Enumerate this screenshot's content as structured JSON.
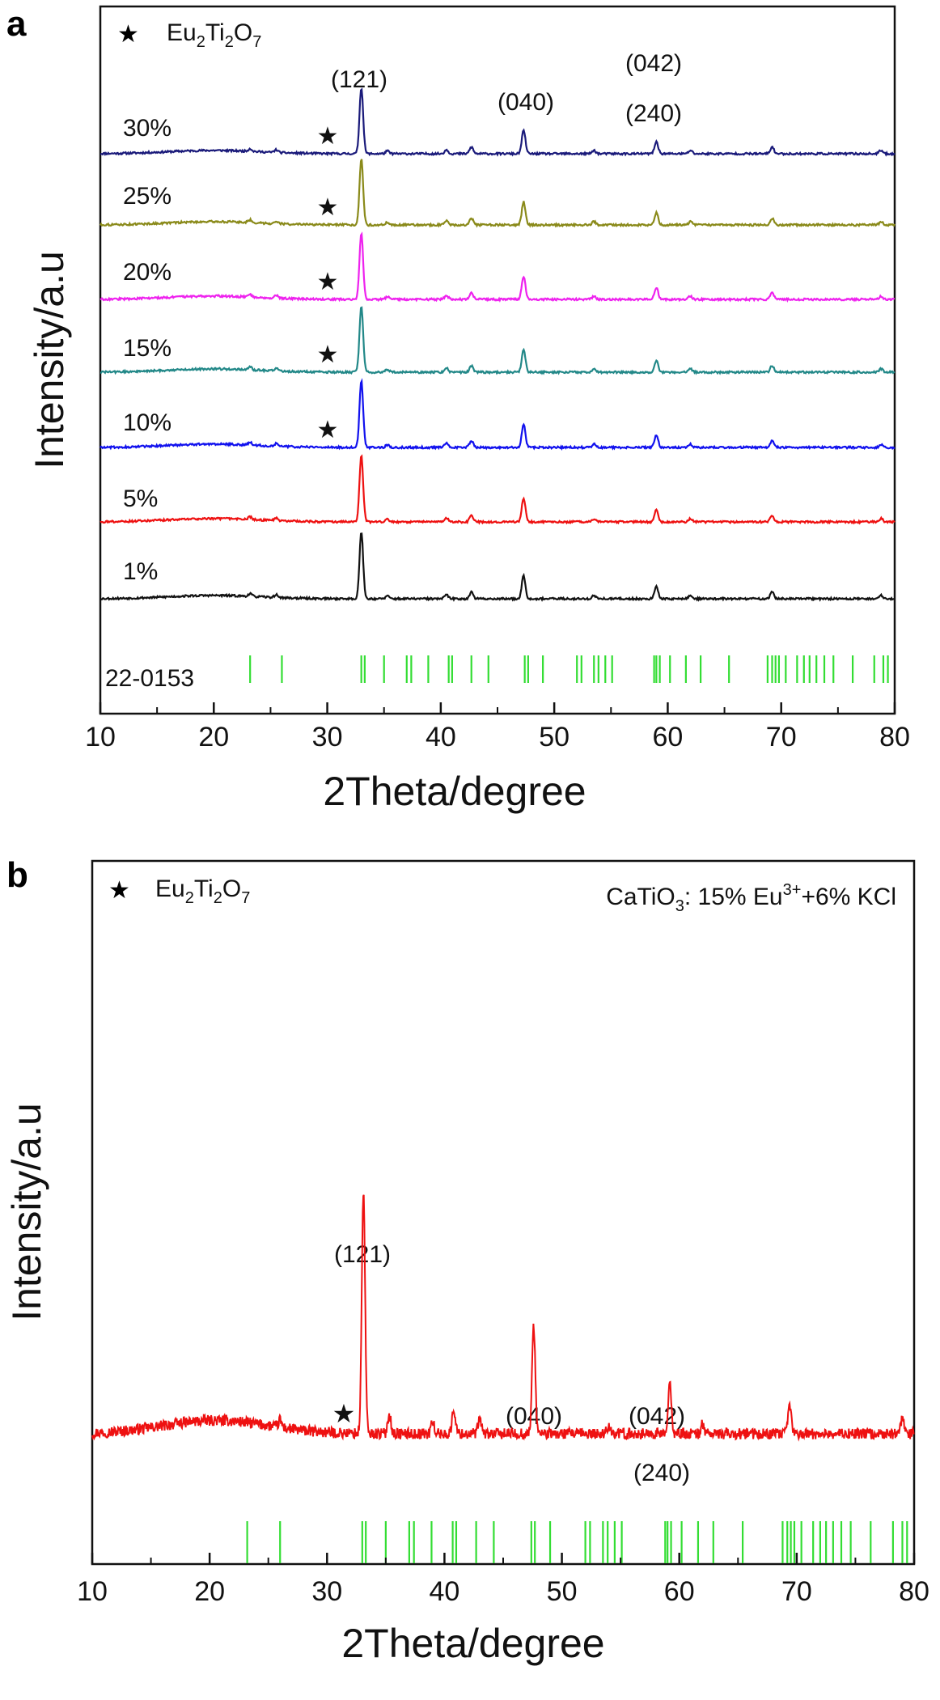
{
  "chart_data": [
    {
      "panel": "a",
      "type": "line",
      "xlabel": "2Theta/degree",
      "ylabel": "Intensity/a.u",
      "xlim": [
        10,
        80
      ],
      "xticks": [
        10,
        20,
        30,
        40,
        50,
        60,
        70,
        80
      ],
      "legend": {
        "marker": "★",
        "label_parts": [
          "Eu",
          "2",
          "Ti",
          "2",
          "O",
          "7"
        ],
        "placement": "top-left"
      },
      "reference_label": "22-0153",
      "reference_color": "#33dd33",
      "peak_labels": [
        "(121)",
        "(040)",
        "(042)",
        "(240)"
      ],
      "star_marker": "★",
      "series": [
        {
          "name": "30%",
          "color": "#1a1a7a",
          "star": true
        },
        {
          "name": "25%",
          "color": "#8a8a1a",
          "star": true
        },
        {
          "name": "20%",
          "color": "#ee22ee",
          "star": true
        },
        {
          "name": "15%",
          "color": "#228888",
          "star": true
        },
        {
          "name": "10%",
          "color": "#1111ee",
          "star": true
        },
        {
          "name": "5%",
          "color": "#ee1111",
          "star": false
        },
        {
          "name": "1%",
          "color": "#111111",
          "star": false
        }
      ],
      "peaks": [
        {
          "x": 33.0,
          "h": 1.0
        },
        {
          "x": 47.3,
          "h": 0.35
        },
        {
          "x": 59.0,
          "h": 0.18
        },
        {
          "x": 42.7,
          "h": 0.1
        },
        {
          "x": 40.5,
          "h": 0.06
        },
        {
          "x": 69.2,
          "h": 0.1
        },
        {
          "x": 53.5,
          "h": 0.05
        },
        {
          "x": 62.0,
          "h": 0.05
        },
        {
          "x": 35.3,
          "h": 0.04
        },
        {
          "x": 23.2,
          "h": 0.04
        },
        {
          "x": 25.5,
          "h": 0.04
        },
        {
          "x": 78.8,
          "h": 0.05
        }
      ],
      "reference_positions": [
        23.2,
        26.0,
        33.0,
        33.3,
        35.0,
        37.0,
        37.4,
        38.9,
        40.7,
        41.0,
        42.7,
        44.2,
        47.4,
        47.7,
        49.0,
        52.0,
        52.4,
        53.5,
        53.9,
        54.5,
        55.1,
        58.8,
        59.0,
        59.3,
        60.2,
        61.6,
        62.9,
        65.4,
        68.8,
        69.2,
        69.5,
        69.8,
        70.4,
        71.4,
        72.0,
        72.5,
        73.1,
        73.8,
        74.6,
        76.3,
        78.2,
        79.0,
        79.4
      ]
    },
    {
      "panel": "b",
      "type": "line",
      "xlabel": "2Theta/degree",
      "ylabel": "Intensity/a.u",
      "xlim": [
        10,
        80
      ],
      "xticks": [
        10,
        20,
        30,
        40,
        50,
        60,
        70,
        80
      ],
      "legend": {
        "marker": "★",
        "label_parts": [
          "Eu",
          "2",
          "Ti",
          "2",
          "O",
          "7"
        ],
        "placement": "top-left"
      },
      "annotation_parts": [
        "CaTiO",
        "3",
        ": 15% Eu",
        "3+",
        "+6% KCl"
      ],
      "reference_color": "#33dd33",
      "peak_labels": [
        "(121)",
        "(040)",
        "(042)",
        "(240)"
      ],
      "star_marker": "★",
      "series": [
        {
          "name": "CaTiO3: 15% Eu3+ +6% KCl",
          "color": "#ee1111"
        }
      ],
      "peaks": [
        {
          "x": 33.1,
          "h": 1.0
        },
        {
          "x": 47.6,
          "h": 0.44
        },
        {
          "x": 59.2,
          "h": 0.2
        },
        {
          "x": 40.8,
          "h": 0.1
        },
        {
          "x": 35.3,
          "h": 0.08
        },
        {
          "x": 69.4,
          "h": 0.12
        },
        {
          "x": 43.0,
          "h": 0.06
        },
        {
          "x": 79.0,
          "h": 0.06
        },
        {
          "x": 62.0,
          "h": 0.04
        },
        {
          "x": 54.0,
          "h": 0.04
        },
        {
          "x": 39.0,
          "h": 0.05
        },
        {
          "x": 26.0,
          "h": 0.03
        }
      ],
      "reference_positions": [
        23.2,
        26.0,
        33.0,
        33.3,
        35.0,
        37.0,
        37.4,
        38.9,
        40.7,
        41.0,
        42.7,
        44.2,
        47.4,
        47.7,
        49.0,
        52.0,
        52.4,
        53.5,
        53.9,
        54.5,
        55.1,
        58.8,
        59.0,
        59.3,
        60.2,
        61.6,
        62.9,
        65.4,
        68.8,
        69.2,
        69.5,
        69.8,
        70.4,
        71.4,
        72.0,
        72.5,
        73.1,
        73.8,
        74.6,
        76.3,
        78.2,
        79.0,
        79.4
      ]
    }
  ],
  "panel_letters": [
    "a",
    "b"
  ]
}
